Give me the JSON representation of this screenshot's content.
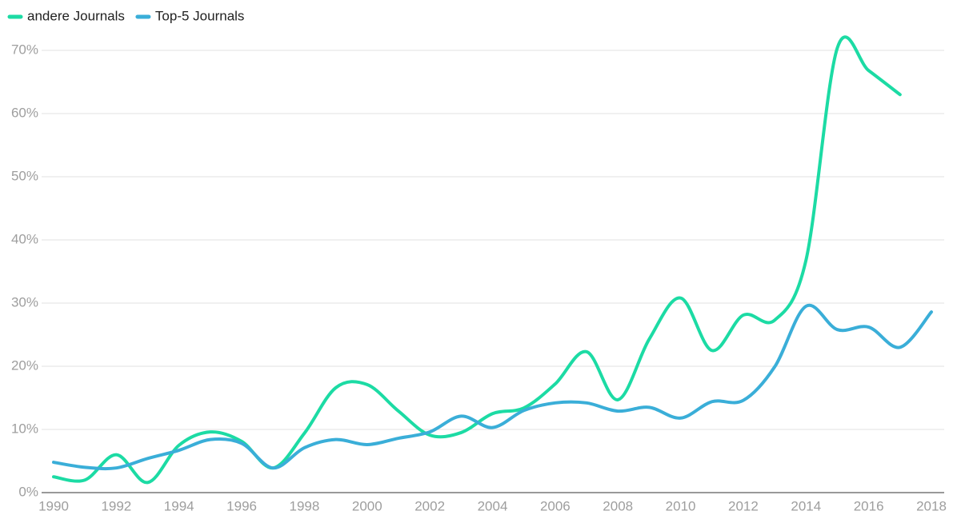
{
  "chart_data": {
    "type": "line",
    "x": [
      1990,
      1991,
      1992,
      1993,
      1994,
      1995,
      1996,
      1997,
      1998,
      1999,
      2000,
      2001,
      2002,
      2003,
      2004,
      2005,
      2006,
      2007,
      2008,
      2009,
      2010,
      2011,
      2012,
      2013,
      2014,
      2015,
      2016,
      2017,
      2018
    ],
    "series": [
      {
        "name": "andere Journals",
        "color": "#1cdba4",
        "values": [
          2.5,
          2.0,
          6.0,
          1.6,
          7.5,
          9.6,
          8.1,
          3.9,
          9.4,
          16.6,
          17.1,
          12.9,
          9.1,
          9.5,
          12.5,
          13.4,
          17.2,
          22.3,
          14.7,
          24.3,
          30.8,
          22.5,
          28.1,
          27.3,
          36.8,
          70.4,
          66.8,
          63.0,
          null
        ]
      },
      {
        "name": "Top-5 Journals",
        "color": "#3aaed8",
        "values": [
          4.8,
          4.0,
          3.9,
          5.4,
          6.7,
          8.4,
          7.8,
          3.9,
          7.1,
          8.4,
          7.6,
          8.6,
          9.6,
          12.1,
          10.3,
          13.0,
          14.2,
          14.2,
          12.9,
          13.5,
          11.8,
          14.4,
          14.6,
          19.9,
          29.5,
          25.8,
          26.2,
          23.0,
          28.6
        ]
      }
    ],
    "xlim": [
      1990,
      2018
    ],
    "xticks": [
      1990,
      1992,
      1994,
      1996,
      1998,
      2000,
      2002,
      2004,
      2006,
      2008,
      2010,
      2012,
      2014,
      2016,
      2018
    ],
    "ylim": [
      0,
      70
    ],
    "yticks": [
      {
        "value": 0,
        "label": "0%"
      },
      {
        "value": 10,
        "label": "10%"
      },
      {
        "value": 20,
        "label": "20%"
      },
      {
        "value": 30,
        "label": "30%"
      },
      {
        "value": 40,
        "label": "40%"
      },
      {
        "value": 50,
        "label": "50%"
      },
      {
        "value": 60,
        "label": "60%"
      },
      {
        "value": 70,
        "label": "70%"
      }
    ],
    "grid": true,
    "legend": "top-left"
  }
}
